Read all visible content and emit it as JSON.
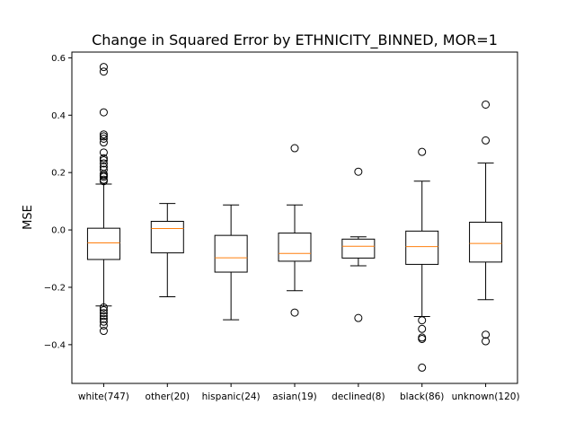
{
  "chart_data": {
    "type": "box",
    "title": "Change in Squared Error by ETHNICITY_BINNED, MOR=1",
    "xlabel": "",
    "ylabel": "MSE",
    "ylim": [
      -0.535,
      0.62
    ],
    "yticks": [
      -0.4,
      -0.2,
      0.0,
      0.2,
      0.4,
      0.6
    ],
    "ytick_labels": [
      "−0.4",
      "−0.2",
      "0.0",
      "0.2",
      "0.4",
      "0.6"
    ],
    "grid": false,
    "colors": {
      "box": "#000000",
      "median": "#ff7f0e",
      "background": "#ffffff"
    },
    "categories": [
      "white(747)",
      "other(20)",
      "hispanic(24)",
      "asian(19)",
      "declined(8)",
      "black(86)",
      "unknown(120)"
    ],
    "boxes": [
      {
        "category": "white(747)",
        "whislo": -0.265,
        "q1": -0.103,
        "med": -0.045,
        "q3": 0.006,
        "whishi": 0.16,
        "fliers": [
          0.568,
          0.552,
          0.41,
          0.333,
          0.326,
          0.318,
          0.305,
          0.27,
          0.25,
          0.243,
          0.232,
          0.22,
          0.21,
          0.195,
          0.19,
          0.185,
          0.175,
          0.17,
          -0.27,
          -0.28,
          -0.29,
          -0.3,
          -0.31,
          -0.32,
          -0.333,
          -0.352
        ]
      },
      {
        "category": "other(20)",
        "whislo": -0.233,
        "q1": -0.08,
        "med": 0.005,
        "q3": 0.03,
        "whishi": 0.092,
        "fliers": []
      },
      {
        "category": "hispanic(24)",
        "whislo": -0.313,
        "q1": -0.147,
        "med": -0.097,
        "q3": -0.019,
        "whishi": 0.087,
        "fliers": []
      },
      {
        "category": "asian(19)",
        "whislo": -0.212,
        "q1": -0.109,
        "med": -0.082,
        "q3": -0.011,
        "whishi": 0.087,
        "fliers": [
          0.285,
          -0.288
        ]
      },
      {
        "category": "declined(8)",
        "whislo": -0.125,
        "q1": -0.098,
        "med": -0.057,
        "q3": -0.032,
        "whishi": -0.024,
        "fliers": [
          0.203,
          -0.307
        ]
      },
      {
        "category": "black(86)",
        "whislo": -0.302,
        "q1": -0.12,
        "med": -0.058,
        "q3": -0.004,
        "whishi": 0.17,
        "fliers": [
          0.272,
          -0.315,
          -0.345,
          -0.375,
          -0.38,
          -0.48
        ]
      },
      {
        "category": "unknown(120)",
        "whislo": -0.243,
        "q1": -0.112,
        "med": -0.047,
        "q3": 0.027,
        "whishi": 0.233,
        "fliers": [
          0.437,
          0.312,
          -0.365,
          -0.388
        ]
      }
    ]
  }
}
